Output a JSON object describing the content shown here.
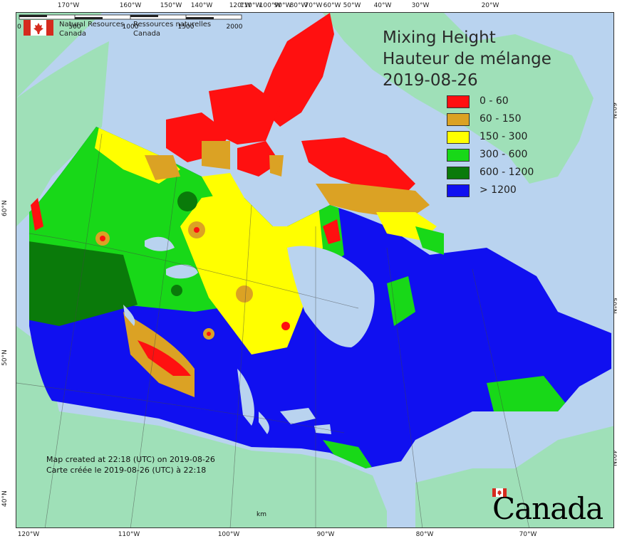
{
  "map": {
    "title_en": "Mixing Height",
    "title_fr": "Hauteur de mélange",
    "date": "2019-08-26",
    "legend": [
      {
        "label": "0 - 60",
        "color": "#ff1010"
      },
      {
        "label": "60 - 150",
        "color": "#dba224"
      },
      {
        "label": "150 - 300",
        "color": "#ffff00"
      },
      {
        "label": "300 - 600",
        "color": "#18d818"
      },
      {
        "label": "600 - 1200",
        "color": "#0a7a0a"
      },
      {
        "label": "> 1200",
        "color": "#1010f0"
      }
    ],
    "agency": {
      "en_line1": "Natural Resources",
      "en_line2": "Canada",
      "fr_line1": "Ressources naturelles",
      "fr_line2": "Canada"
    },
    "created_en": "Map created at 22:18 (UTC) on 2019-08-26",
    "created_fr": "Carte créée le 2019-08-26 (UTC) à 22:18",
    "scale": {
      "ticks": [
        "0",
        "500",
        "1000",
        "1500",
        "2000"
      ],
      "unit": "km"
    },
    "wordmark": "Canada",
    "top_ticks": [
      "170°W",
      "160°W",
      "150°W",
      "140°W",
      "120°W",
      "110°W",
      "100°W",
      "90°W",
      "80°W",
      "70°W",
      "60°W",
      "50°W",
      "40°W",
      "30°W",
      "20°W"
    ],
    "bottom_ticks": [
      "120°W",
      "110°W",
      "100°W",
      "90°W",
      "80°W",
      "70°W"
    ],
    "left_ticks": [
      "60°N",
      "50°N",
      "40°N"
    ],
    "right_ticks": [
      "60°N",
      "50°N",
      "40°N"
    ],
    "colors": {
      "ocean": "#b9d3ef",
      "foreign_land": "#9fe0b8",
      "border": "#333333"
    }
  }
}
